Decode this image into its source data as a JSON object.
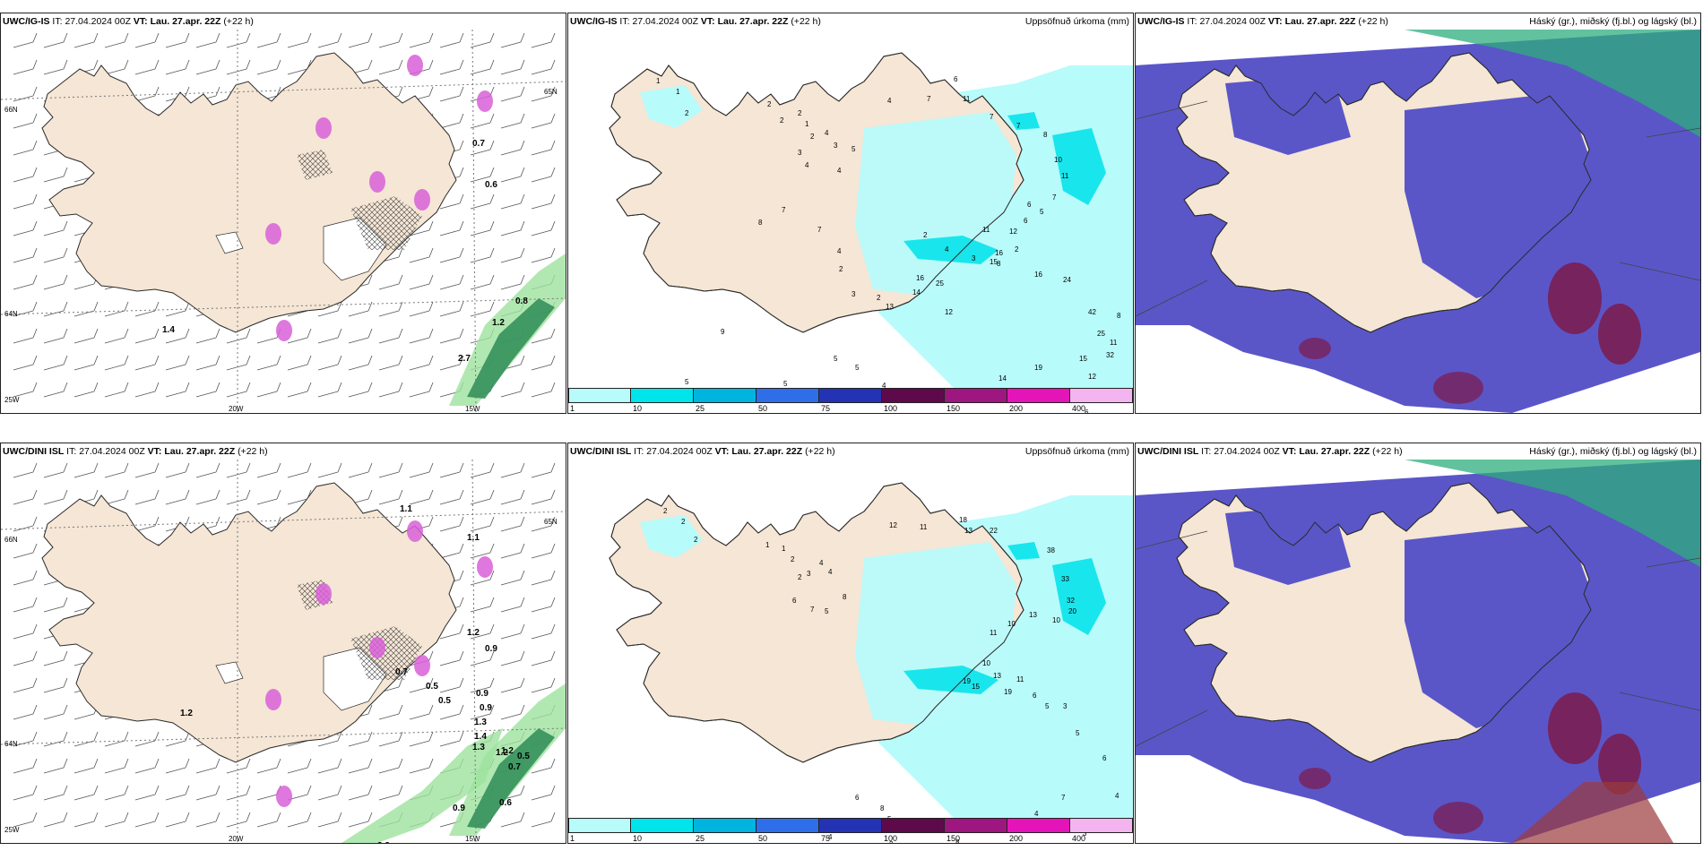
{
  "panels": [
    {
      "model": "UWC/IG-IS",
      "it_label": "IT:",
      "it": "27.04.2024 00Z",
      "vt_label": "VT:",
      "vt": "Lau. 27.apr. 22Z",
      "lead": "(+22 h)",
      "right": ""
    },
    {
      "model": "UWC/IG-IS",
      "it_label": "IT:",
      "it": "27.04.2024 00Z",
      "vt_label": "VT:",
      "vt": "Lau. 27.apr. 22Z",
      "lead": "(+22 h)",
      "right": "Uppsöfnuð úrkoma (mm)"
    },
    {
      "model": "UWC/IG-IS",
      "it_label": "IT:",
      "it": "27.04.2024 00Z",
      "vt_label": "VT:",
      "vt": "Lau. 27.apr. 22Z",
      "lead": "(+22 h)",
      "right": "Háský (gr.), miðský (fj.bl.) og lágský (bl.)"
    },
    {
      "model": "UWC/DINI ISL",
      "it_label": "IT:",
      "it": "27.04.2024 00Z",
      "vt_label": "VT:",
      "vt": "Lau. 27.apr. 22Z",
      "lead": "(+22 h)",
      "right": ""
    },
    {
      "model": "UWC/DINI ISL",
      "it_label": "IT:",
      "it": "27.04.2024 00Z",
      "vt_label": "VT:",
      "vt": "Lau. 27.apr. 22Z",
      "lead": "(+22 h)",
      "right": "Uppsöfnuð úrkoma (mm)"
    },
    {
      "model": "UWC/DINI ISL",
      "it_label": "IT:",
      "it": "27.04.2024 00Z",
      "vt_label": "VT:",
      "vt": "Lau. 27.apr. 22Z",
      "lead": "(+22 h)",
      "right": "Háský (gr.), miðský (fj.bl.) og lágský (bl.)"
    }
  ],
  "axis_labels": {
    "lat66": "66N",
    "lat64": "64N",
    "lat65": "65N",
    "lon20": "20W",
    "lon15": "15W",
    "lat25": "25W"
  },
  "colorbar": {
    "ticks": [
      "1",
      "10",
      "25",
      "50",
      "75",
      "100",
      "150",
      "200",
      "400"
    ],
    "colors": [
      "#b8fbfb",
      "#00e5ec",
      "#00b4e0",
      "#2e6ee8",
      "#2433b4",
      "#5e0a4a",
      "#9e1680",
      "#e414b8",
      "#f4b4f0"
    ]
  },
  "precip_top": {
    "labels": [
      "1",
      "1",
      "2",
      "2",
      "2",
      "2",
      "1",
      "2",
      "4",
      "3",
      "4",
      "4",
      "3",
      "5",
      "4",
      "7",
      "6",
      "11",
      "7",
      "7",
      "8",
      "10",
      "11",
      "7",
      "5",
      "6",
      "6",
      "12",
      "11",
      "16",
      "15",
      "16",
      "24",
      "42",
      "25",
      "32",
      "15",
      "19",
      "14",
      "8",
      "4",
      "5",
      "5",
      "5",
      "4",
      "5",
      "9",
      "8",
      "7",
      "7",
      "4",
      "2",
      "2",
      "4",
      "3",
      "8",
      "2",
      "3",
      "2",
      "13",
      "14",
      "16",
      "25",
      "12",
      "2",
      "6",
      "12",
      "4",
      "11",
      "8"
    ]
  },
  "precip_bottom": {
    "labels": [
      "2",
      "2",
      "2",
      "1",
      "1",
      "2",
      "2",
      "3",
      "4",
      "4",
      "6",
      "7",
      "5",
      "8",
      "12",
      "11",
      "18",
      "13",
      "22",
      "38",
      "33",
      "32",
      "20",
      "10",
      "13",
      "10",
      "11",
      "10",
      "13",
      "19",
      "15",
      "19",
      "11",
      "6",
      "5",
      "3",
      "5",
      "6",
      "4",
      "7",
      "5",
      "3",
      "4",
      "8",
      "9",
      "5",
      "8",
      "6",
      "2",
      "2",
      "6",
      "9",
      "5",
      "4"
    ]
  },
  "ptype_top": {
    "labels": [
      "0.8",
      "1.2",
      "2.7",
      "1.4",
      "0.7",
      "0.6"
    ]
  },
  "ptype_bottom": {
    "labels": [
      "1.1",
      "1.1",
      "1.2",
      "0.9",
      "0.5",
      "0.5",
      "0.9",
      "0.9",
      "1.3",
      "1.4",
      "1.3",
      "1.2",
      "0.5",
      "0.7",
      "1.2",
      "2.3",
      "0.9",
      "0.6",
      "0.7",
      "1.2"
    ]
  },
  "colors": {
    "land": "#f5e6d5",
    "coast": "#2a2a2a",
    "precip_light": "#b8fbfb",
    "precip_cyan": "#19e6ec",
    "cloud_low": "#5a56c8",
    "cloud_mid": "#7d1a4a",
    "cloud_high": "#2eae7c",
    "green_precip": "#2e8b57",
    "snow_pink": "#d860d8"
  }
}
